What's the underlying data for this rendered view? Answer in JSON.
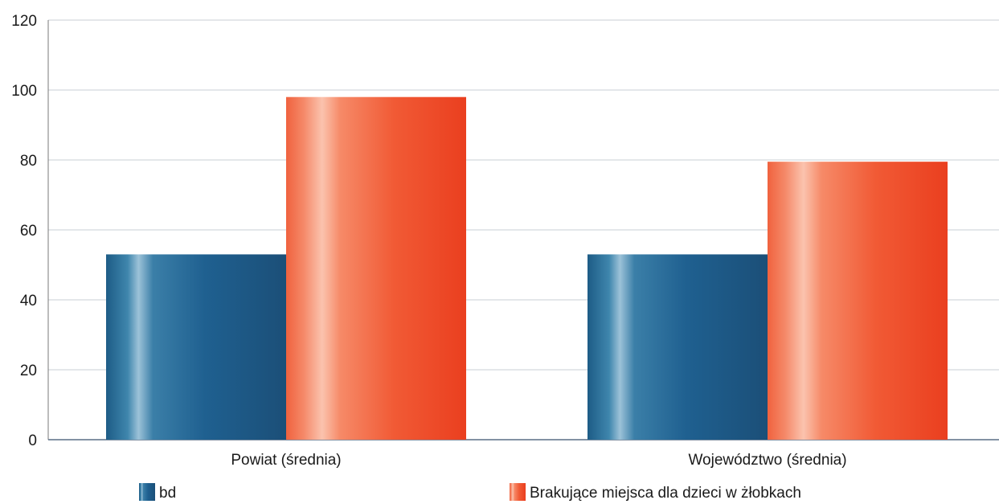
{
  "chart_data": {
    "type": "bar",
    "categories": [
      "Powiat (średnia)",
      "Województwo (średnia)"
    ],
    "series": [
      {
        "name": "bd",
        "values": [
          53,
          53
        ],
        "color": "#1f5f8b"
      },
      {
        "name": "Brakujące miejsca dla dzieci w żłobkach",
        "values": [
          98,
          79.5
        ],
        "color": "#f04a28"
      }
    ],
    "ylim": [
      0,
      120
    ],
    "yticks": [
      0,
      20,
      40,
      60,
      80,
      100,
      120
    ],
    "grid": true,
    "legend_position": "bottom"
  }
}
